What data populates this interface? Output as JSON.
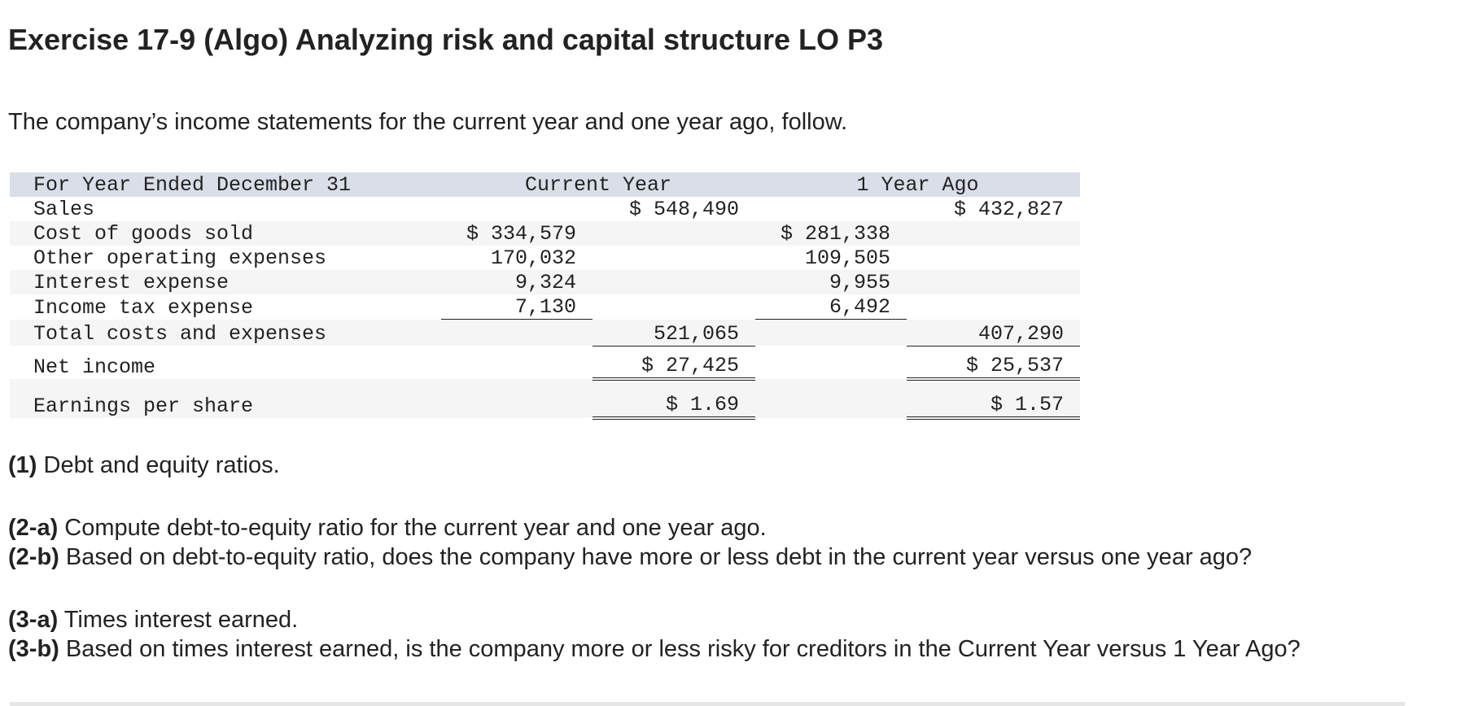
{
  "header": {
    "title": "Exercise 17-9 (Algo) Analyzing risk and capital structure LO P3"
  },
  "intro": "The company’s income statements for the current year and one year ago, follow.",
  "table": {
    "columns": [
      "For Year Ended December 31",
      "Current Year",
      "1 Year Ago"
    ],
    "rows": [
      [
        "Sales",
        null,
        "$ 548,490",
        null,
        "$ 432,827"
      ],
      [
        "Cost of goods sold",
        "$ 334,579",
        null,
        "$ 281,338",
        null
      ],
      [
        "Other operating expenses",
        "170,032",
        null,
        "109,505",
        null
      ],
      [
        "Interest expense",
        "9,324",
        null,
        "9,955",
        null
      ],
      [
        "Income tax expense",
        "7,130",
        null,
        "6,492",
        null
      ],
      [
        "Total costs and expenses",
        null,
        "521,065",
        null,
        "407,290"
      ],
      [
        "Net income",
        null,
        "$ 27,425",
        null,
        "$ 25,537"
      ],
      [
        "Earnings per share",
        null,
        "$ 1.69",
        null,
        "$ 1.57"
      ]
    ]
  },
  "questions": [
    {
      "label": "(1)",
      "text": "Debt and equity ratios."
    },
    {
      "label": "(2-a)",
      "text": "Compute debt-to-equity ratio for the current year and one year ago."
    },
    {
      "label": "(2-b)",
      "text": "Based on debt-to-equity ratio, does the company have more or less debt in the current year versus one year ago?"
    },
    {
      "label": "(3-a)",
      "text": "Times interest earned."
    },
    {
      "label": "(3-b)",
      "text": "Based on times interest earned, is the company more or less risky for creditors in the Current Year versus 1 Year Ago?"
    }
  ]
}
